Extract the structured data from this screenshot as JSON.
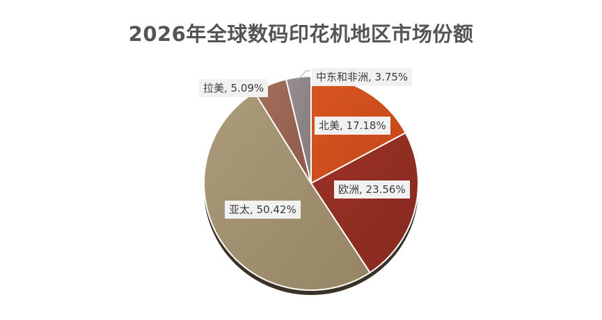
{
  "chart_data": {
    "type": "pie",
    "title": "2026年全球数码印花机地区市场份额",
    "start_angle_deg": 0,
    "direction": "clockwise",
    "slices": [
      {
        "name": "北美",
        "value": 17.18,
        "label": "北美, 17.18%",
        "color": "#cc4a1c"
      },
      {
        "name": "欧洲",
        "value": 23.56,
        "label": "欧洲, 23.56%",
        "color": "#922e22"
      },
      {
        "name": "亚太",
        "value": 50.42,
        "label": "亚太, 50.42%",
        "color": "#a09070"
      },
      {
        "name": "拉美",
        "value": 5.09,
        "label": "拉美, 5.09%",
        "color": "#9a6452"
      },
      {
        "name": "中东和非洲",
        "value": 3.75,
        "label": "中东和非洲, 3.75%",
        "color": "#8e8486"
      }
    ],
    "legend": "none"
  }
}
